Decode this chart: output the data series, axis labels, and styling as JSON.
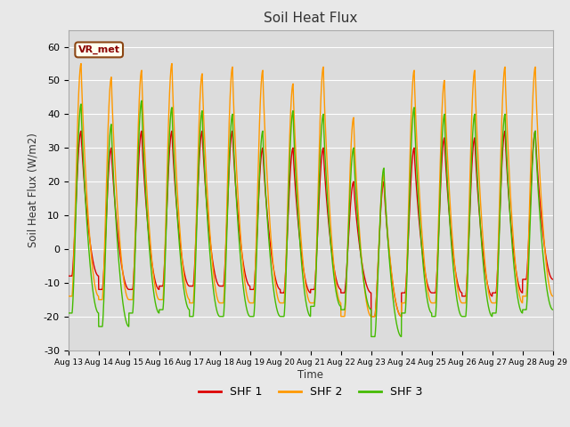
{
  "title": "Soil Heat Flux",
  "ylabel": "Soil Heat Flux (W/m2)",
  "xlabel": "Time",
  "ylim": [
    -30,
    65
  ],
  "yticks": [
    -30,
    -20,
    -10,
    0,
    10,
    20,
    30,
    40,
    50,
    60
  ],
  "legend_labels": [
    "SHF 1",
    "SHF 2",
    "SHF 3"
  ],
  "legend_colors": [
    "#dd0000",
    "#ff9900",
    "#44bb00"
  ],
  "annotation_text": "VR_met",
  "background_color": "#e8e8e8",
  "plot_bg_color": "#dcdcdc",
  "n_days": 16,
  "start_day": 13,
  "shf1_peaks": [
    35,
    30,
    35,
    35,
    35,
    35,
    30,
    30,
    30,
    20,
    20,
    30,
    33,
    33,
    35,
    35
  ],
  "shf2_peaks": [
    55,
    51,
    53,
    55,
    52,
    54,
    53,
    49,
    54,
    39,
    22,
    53,
    50,
    53,
    54,
    54
  ],
  "shf3_peaks": [
    43,
    37,
    44,
    42,
    41,
    40,
    35,
    41,
    40,
    30,
    24,
    42,
    40,
    40,
    40,
    35
  ],
  "shf1_troughs": [
    -8,
    -12,
    -12,
    -11,
    -11,
    -11,
    -12,
    -13,
    -12,
    -13,
    -20,
    -13,
    -13,
    -14,
    -13,
    -9
  ],
  "shf2_troughs": [
    -14,
    -15,
    -15,
    -15,
    -16,
    -16,
    -16,
    -16,
    -16,
    -20,
    -20,
    -16,
    -16,
    -16,
    -16,
    -14
  ],
  "shf3_troughs": [
    -19,
    -23,
    -19,
    -18,
    -20,
    -20,
    -20,
    -20,
    -17,
    -18,
    -26,
    -19,
    -20,
    -20,
    -19,
    -18
  ]
}
